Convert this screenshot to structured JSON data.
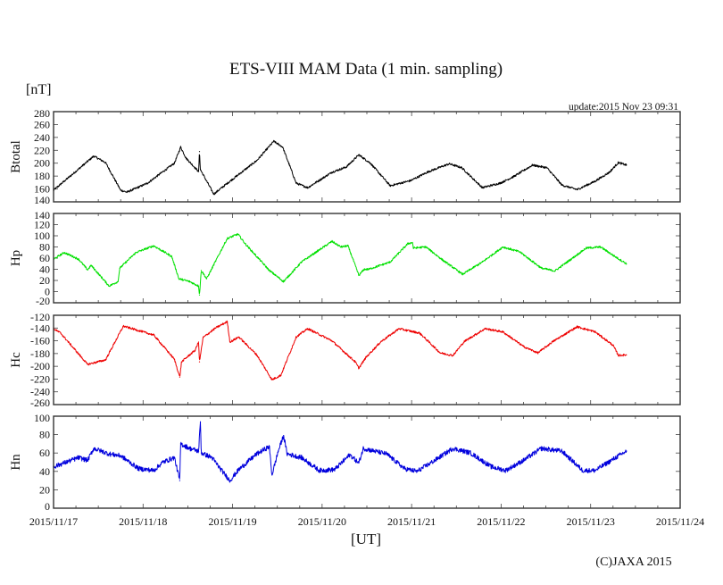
{
  "title": "ETS-VIII MAM Data (1 min. sampling)",
  "unit_label": "[nT]",
  "update_text": "update:2015 Nov 23 09:31",
  "x_axis_label": "[UT]",
  "copyright": "(C)JAXA 2015",
  "chart_data": {
    "type": "line",
    "title": "ETS-VIII MAM Data (1 min. sampling)",
    "xlabel": "[UT]",
    "ylabel": "[nT]",
    "x_unit": "days since 2015/11/17 00:00 UT",
    "xlim": [
      0,
      7
    ],
    "x_tick_labels": [
      "2015/11/17",
      "2015/11/18",
      "2015/11/19",
      "2015/11/20",
      "2015/11/21",
      "2015/11/22",
      "2015/11/23",
      "2015/11/24"
    ],
    "x_minor_tick_step_days": 0.25,
    "grid": false,
    "panels": [
      {
        "name": "Btotal",
        "ylabel": "Btotal",
        "color": "#000000",
        "ylim": [
          140,
          280
        ],
        "ystep": 20,
        "noise": 1.6,
        "points": [
          [
            0,
            158
          ],
          [
            0.45,
            211
          ],
          [
            0.58,
            201
          ],
          [
            0.75,
            158
          ],
          [
            0.82,
            155
          ],
          [
            1.05,
            169
          ],
          [
            1.35,
            200
          ],
          [
            1.42,
            225
          ],
          [
            1.48,
            208
          ],
          [
            1.62,
            187
          ],
          [
            1.63,
            218
          ],
          [
            1.64,
            190
          ],
          [
            1.79,
            152
          ],
          [
            1.97,
            172
          ],
          [
            2.27,
            204
          ],
          [
            2.46,
            234
          ],
          [
            2.56,
            225
          ],
          [
            2.71,
            169
          ],
          [
            2.84,
            162
          ],
          [
            3.11,
            186
          ],
          [
            3.27,
            194
          ],
          [
            3.41,
            213
          ],
          [
            3.54,
            200
          ],
          [
            3.76,
            165
          ],
          [
            3.99,
            173
          ],
          [
            4.19,
            187
          ],
          [
            4.42,
            199
          ],
          [
            4.56,
            193
          ],
          [
            4.79,
            162
          ],
          [
            4.99,
            169
          ],
          [
            5.15,
            180
          ],
          [
            5.35,
            197
          ],
          [
            5.51,
            193
          ],
          [
            5.68,
            166
          ],
          [
            5.85,
            159
          ],
          [
            6.05,
            172
          ],
          [
            6.21,
            186
          ],
          [
            6.31,
            201
          ],
          [
            6.4,
            197
          ]
        ]
      },
      {
        "name": "Hp",
        "ylabel": "Hp",
        "color": "#00e000",
        "ylim": [
          -20,
          140
        ],
        "ystep": 20,
        "noise": 1.8,
        "points": [
          [
            0,
            58
          ],
          [
            0.12,
            70
          ],
          [
            0.28,
            58
          ],
          [
            0.38,
            39
          ],
          [
            0.42,
            47
          ],
          [
            0.62,
            10
          ],
          [
            0.72,
            18
          ],
          [
            0.74,
            42
          ],
          [
            0.92,
            70
          ],
          [
            1.12,
            82
          ],
          [
            1.32,
            63
          ],
          [
            1.4,
            23
          ],
          [
            1.52,
            18
          ],
          [
            1.62,
            10
          ],
          [
            1.63,
            -6
          ],
          [
            1.65,
            38
          ],
          [
            1.71,
            23
          ],
          [
            1.94,
            95
          ],
          [
            2.06,
            103
          ],
          [
            2.14,
            86
          ],
          [
            2.41,
            38
          ],
          [
            2.57,
            18
          ],
          [
            2.77,
            53
          ],
          [
            3.11,
            90
          ],
          [
            3.21,
            80
          ],
          [
            3.29,
            82
          ],
          [
            3.41,
            29
          ],
          [
            3.47,
            40
          ],
          [
            3.52,
            40
          ],
          [
            3.76,
            53
          ],
          [
            3.96,
            86
          ],
          [
            4.01,
            88
          ],
          [
            4.02,
            78
          ],
          [
            4.16,
            80
          ],
          [
            4.36,
            55
          ],
          [
            4.57,
            31
          ],
          [
            4.79,
            53
          ],
          [
            5.02,
            80
          ],
          [
            5.21,
            71
          ],
          [
            5.45,
            42
          ],
          [
            5.6,
            37
          ],
          [
            5.78,
            58
          ],
          [
            5.95,
            78
          ],
          [
            6.11,
            80
          ],
          [
            6.28,
            62
          ],
          [
            6.4,
            50
          ]
        ]
      },
      {
        "name": "Hc",
        "ylabel": "Hc",
        "color": "#ee0000",
        "ylim": [
          -260,
          -120
        ],
        "ystep": 20,
        "noise": 1.6,
        "points": [
          [
            0,
            -141
          ],
          [
            0.08,
            -148
          ],
          [
            0.38,
            -197
          ],
          [
            0.58,
            -190
          ],
          [
            0.78,
            -137
          ],
          [
            1.12,
            -151
          ],
          [
            1.35,
            -189
          ],
          [
            1.41,
            -217
          ],
          [
            1.43,
            -193
          ],
          [
            1.58,
            -175
          ],
          [
            1.62,
            -162
          ],
          [
            1.63,
            -193
          ],
          [
            1.67,
            -155
          ],
          [
            1.81,
            -140
          ],
          [
            1.94,
            -130
          ],
          [
            1.97,
            -162
          ],
          [
            2.07,
            -154
          ],
          [
            2.27,
            -182
          ],
          [
            2.44,
            -221
          ],
          [
            2.54,
            -214
          ],
          [
            2.71,
            -154
          ],
          [
            2.84,
            -141
          ],
          [
            3.11,
            -160
          ],
          [
            3.37,
            -193
          ],
          [
            3.41,
            -203
          ],
          [
            3.49,
            -186
          ],
          [
            3.66,
            -161
          ],
          [
            3.86,
            -141
          ],
          [
            4.09,
            -148
          ],
          [
            4.32,
            -179
          ],
          [
            4.46,
            -183
          ],
          [
            4.59,
            -161
          ],
          [
            4.82,
            -141
          ],
          [
            5.02,
            -146
          ],
          [
            5.25,
            -169
          ],
          [
            5.41,
            -179
          ],
          [
            5.58,
            -161
          ],
          [
            5.85,
            -138
          ],
          [
            6.05,
            -146
          ],
          [
            6.25,
            -167
          ],
          [
            6.31,
            -183
          ],
          [
            6.4,
            -182
          ]
        ]
      },
      {
        "name": "Hn",
        "ylabel": "Hn",
        "color": "#0000dd",
        "ylim": [
          0,
          100
        ],
        "ystep": 20,
        "noise": 2.6,
        "points": [
          [
            0,
            45
          ],
          [
            0.28,
            55
          ],
          [
            0.38,
            52
          ],
          [
            0.45,
            65
          ],
          [
            0.62,
            59
          ],
          [
            0.75,
            57
          ],
          [
            0.95,
            43
          ],
          [
            1.12,
            41
          ],
          [
            1.22,
            50
          ],
          [
            1.35,
            55
          ],
          [
            1.41,
            30
          ],
          [
            1.42,
            70
          ],
          [
            1.52,
            65
          ],
          [
            1.62,
            62
          ],
          [
            1.64,
            94
          ],
          [
            1.65,
            60
          ],
          [
            1.77,
            55
          ],
          [
            1.87,
            42
          ],
          [
            1.97,
            30
          ],
          [
            2.07,
            42
          ],
          [
            2.27,
            59
          ],
          [
            2.41,
            67
          ],
          [
            2.44,
            36
          ],
          [
            2.51,
            62
          ],
          [
            2.57,
            79
          ],
          [
            2.61,
            59
          ],
          [
            2.77,
            55
          ],
          [
            2.97,
            41
          ],
          [
            3.14,
            42
          ],
          [
            3.31,
            58
          ],
          [
            3.41,
            49
          ],
          [
            3.46,
            65
          ],
          [
            3.72,
            59
          ],
          [
            3.92,
            43
          ],
          [
            4.06,
            40
          ],
          [
            4.26,
            52
          ],
          [
            4.46,
            65
          ],
          [
            4.66,
            60
          ],
          [
            4.89,
            45
          ],
          [
            5.05,
            41
          ],
          [
            5.25,
            52
          ],
          [
            5.45,
            65
          ],
          [
            5.68,
            62
          ],
          [
            5.91,
            41
          ],
          [
            6.05,
            41
          ],
          [
            6.28,
            55
          ],
          [
            6.4,
            62
          ]
        ]
      }
    ]
  }
}
